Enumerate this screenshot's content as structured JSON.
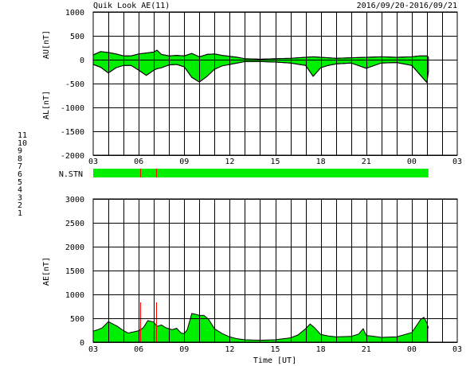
{
  "header": {
    "title": "Quik Look AE(11)",
    "date_range": "2016/09/20-2016/09/21"
  },
  "colors": {
    "fill": "#00ee00",
    "line": "#000000",
    "grid": "#000000",
    "flag": "#ff0000"
  },
  "station_legend": [
    {
      "label": "11",
      "color": "#33dddd"
    },
    {
      "label": "10",
      "color": "#ff22ff"
    },
    {
      "label": "9",
      "color": "#0000aa"
    },
    {
      "label": "8",
      "color": "#ffee99"
    },
    {
      "label": "7",
      "color": "#bbdd66"
    },
    {
      "label": "6",
      "color": "#ee0000"
    },
    {
      "label": "5",
      "color": "#dddddd"
    },
    {
      "label": "4",
      "color": "#aaaaaa"
    },
    {
      "label": "3",
      "color": "#22aaaa"
    },
    {
      "label": "2",
      "color": "#aa00aa"
    },
    {
      "label": "1",
      "color": "#0000ff"
    }
  ],
  "chart_data": [
    {
      "type": "area",
      "title": "",
      "ylabel_top": "AU[nT]",
      "ylabel_bottom": "AL[nT]",
      "xlabel": "",
      "xlim": [
        3,
        27
      ],
      "ylim": [
        -2000,
        1000
      ],
      "x_ticks": [
        "03",
        "06",
        "09",
        "12",
        "15",
        "18",
        "21",
        "00",
        "03"
      ],
      "y_ticks": [
        "1000",
        "500",
        "0",
        "-500",
        "-1000",
        "-1500",
        "-2000"
      ],
      "grid": true,
      "data_end_hour": 25.1,
      "series": [
        {
          "name": "AU",
          "x": [
            3,
            3.5,
            4,
            4.5,
            5,
            5.5,
            6,
            6.5,
            7,
            7.2,
            7.5,
            8,
            8.5,
            9,
            9.5,
            10,
            10.5,
            11,
            11.5,
            12,
            12.5,
            13,
            14,
            15,
            16,
            17,
            17.5,
            18,
            18.5,
            19,
            20,
            21,
            22,
            23,
            24,
            24.5,
            25,
            25.1
          ],
          "values": [
            100,
            170,
            150,
            120,
            80,
            80,
            120,
            140,
            160,
            200,
            110,
            80,
            90,
            80,
            130,
            60,
            110,
            120,
            90,
            70,
            50,
            20,
            10,
            20,
            30,
            50,
            60,
            50,
            40,
            30,
            40,
            50,
            60,
            50,
            60,
            80,
            80,
            50
          ]
        },
        {
          "name": "AL",
          "x": [
            3,
            3.5,
            4,
            4.5,
            5,
            5.5,
            6,
            6.5,
            7,
            7.2,
            7.5,
            8,
            8.5,
            9,
            9.5,
            10,
            10.5,
            11,
            11.5,
            12,
            12.5,
            13,
            14,
            15,
            16,
            17,
            17.5,
            18,
            18.5,
            19,
            20,
            21,
            22,
            23,
            24,
            24.5,
            25,
            25.1
          ],
          "values": [
            -100,
            -160,
            -280,
            -170,
            -120,
            -120,
            -220,
            -330,
            -220,
            -190,
            -170,
            -110,
            -100,
            -150,
            -370,
            -470,
            -350,
            -200,
            -130,
            -100,
            -70,
            -40,
            -40,
            -50,
            -70,
            -120,
            -350,
            -170,
            -120,
            -90,
            -70,
            -180,
            -70,
            -60,
            -120,
            -300,
            -480,
            -240
          ]
        }
      ]
    },
    {
      "type": "bar",
      "title": "",
      "label": "N.STN",
      "xlim": [
        3,
        27
      ],
      "data_end_hour": 25.1,
      "markers": [
        6.1,
        7.15
      ]
    },
    {
      "type": "area",
      "title": "",
      "ylabel": "AE[nT]",
      "xlabel": "Time [UT]",
      "xlim": [
        3,
        27
      ],
      "ylim": [
        0,
        3000
      ],
      "x_ticks": [
        "03",
        "06",
        "09",
        "12",
        "15",
        "18",
        "21",
        "00",
        "03"
      ],
      "y_ticks": [
        "3000",
        "2500",
        "2000",
        "1500",
        "1000",
        "500",
        "0"
      ],
      "grid": true,
      "series": [
        {
          "name": "AE",
          "x": [
            3,
            3.3,
            3.6,
            4,
            4.3,
            4.6,
            5,
            5.3,
            5.6,
            6,
            6.3,
            6.6,
            7,
            7.2,
            7.5,
            7.8,
            8.2,
            8.5,
            8.8,
            9,
            9.2,
            9.5,
            9.8,
            10,
            10.3,
            10.6,
            11,
            11.5,
            12,
            12.5,
            13,
            14,
            15,
            16,
            16.5,
            17,
            17.3,
            17.6,
            18,
            18.5,
            19,
            20,
            20.5,
            20.8,
            21,
            21.3,
            22,
            23,
            24,
            24.3,
            24.6,
            24.8,
            25,
            25.1
          ],
          "values": [
            230,
            260,
            300,
            430,
            380,
            330,
            240,
            190,
            210,
            240,
            300,
            450,
            420,
            330,
            360,
            300,
            260,
            290,
            190,
            180,
            260,
            600,
            580,
            560,
            560,
            480,
            280,
            180,
            110,
            70,
            50,
            40,
            50,
            90,
            150,
            280,
            380,
            300,
            160,
            130,
            110,
            120,
            170,
            280,
            140,
            130,
            100,
            110,
            200,
            340,
            480,
            520,
            400,
            290
          ]
        }
      ]
    }
  ]
}
